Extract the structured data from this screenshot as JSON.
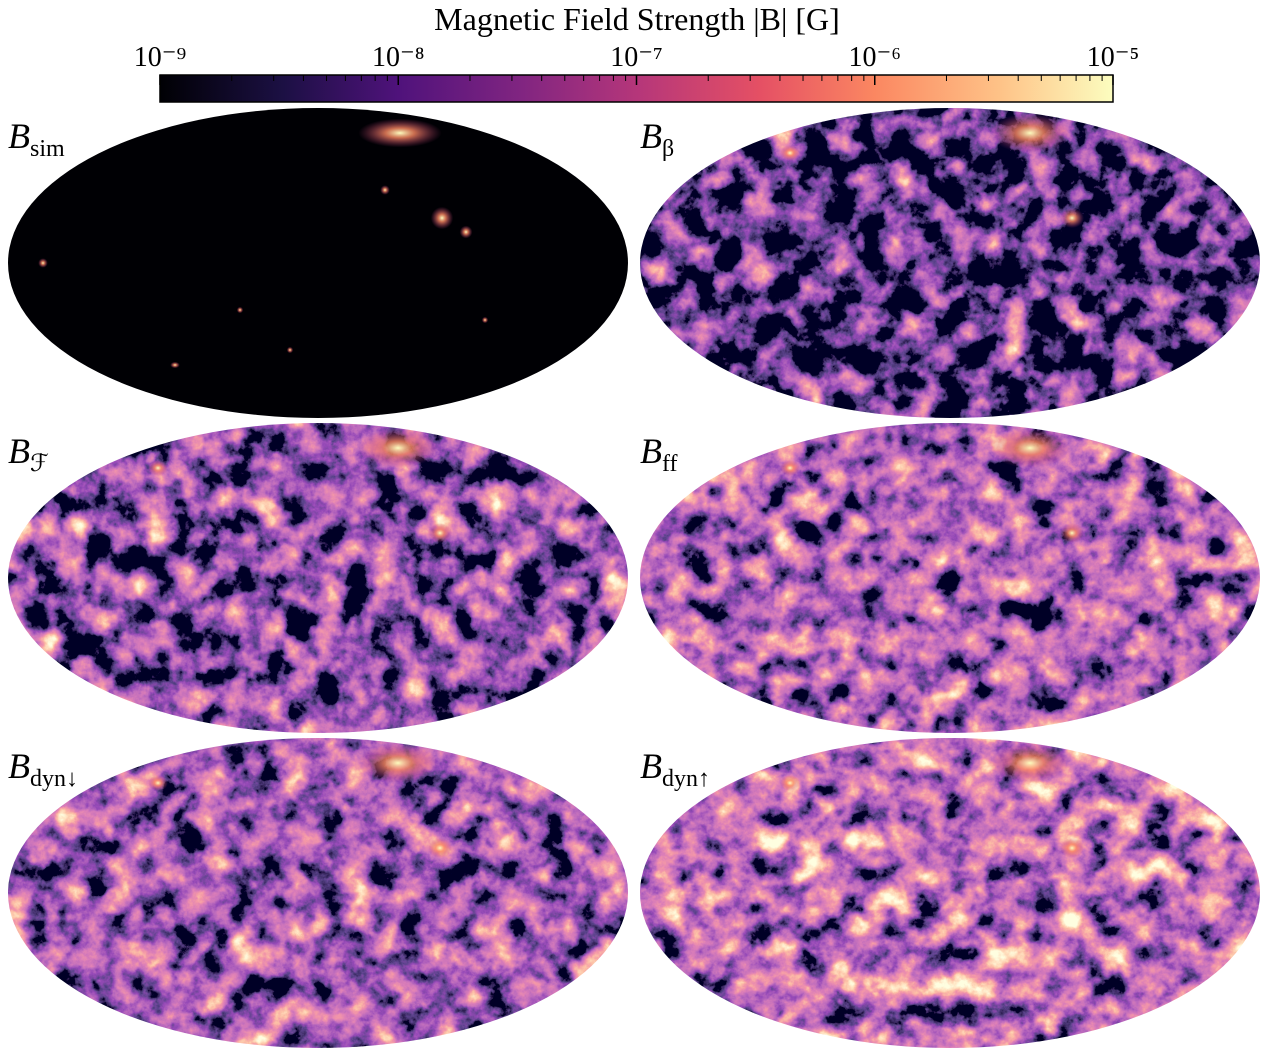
{
  "chart_data": {
    "type": "skymap-grid",
    "title": "Magnetic Field Strength  |B| [G]",
    "colorbar": {
      "scale": "log",
      "colormap": "magma",
      "xlim": [
        1e-09,
        1e-05
      ],
      "xticks": [
        {
          "value": 1e-09,
          "label": "10⁻⁹"
        },
        {
          "value": 1e-08,
          "label": "10⁻⁸"
        },
        {
          "value": 1e-07,
          "label": "10⁻⁷"
        },
        {
          "value": 1e-06,
          "label": "10⁻⁶"
        },
        {
          "value": 1e-05,
          "label": "10⁻⁵"
        }
      ],
      "xminorticks": [
        2e-09,
        3e-09,
        4e-09,
        5e-09,
        6e-09,
        7e-09,
        8e-09,
        9e-09,
        2e-08,
        3e-08,
        4e-08,
        5e-08,
        6e-08,
        7e-08,
        8e-08,
        9e-08,
        2e-07,
        3e-07,
        4e-07,
        5e-07,
        6e-07,
        7e-07,
        8e-07,
        9e-07,
        2e-06,
        3e-06,
        4e-06,
        5e-06,
        6e-06,
        7e-06,
        8e-06,
        9e-06
      ]
    },
    "panels": [
      {
        "symbol": "B",
        "subscript": "sim"
      },
      {
        "symbol": "B",
        "subscript": "β"
      },
      {
        "symbol": "B",
        "subscript": "ℱ"
      },
      {
        "symbol": "B",
        "subscript": "ff"
      },
      {
        "symbol": "B",
        "subscript": "dyn↓"
      },
      {
        "symbol": "B",
        "subscript": "dyn↑"
      }
    ]
  }
}
